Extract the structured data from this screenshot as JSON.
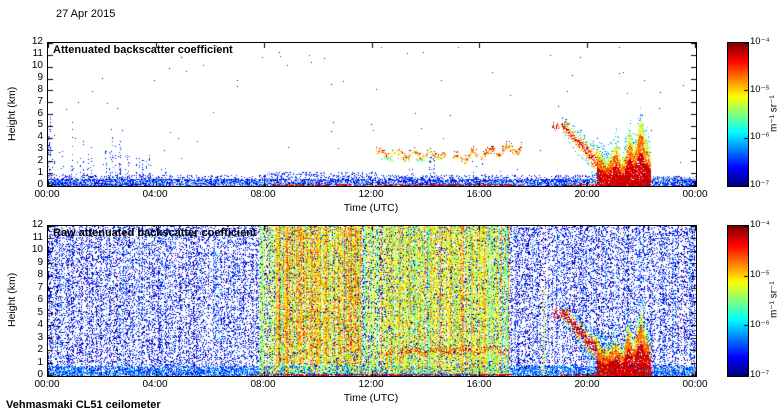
{
  "page": {
    "date_label": "27 Apr 2015",
    "footer_label": "Vehmasmaki CL51 ceilometer"
  },
  "colorbar": {
    "unit": "m⁻¹ sr⁻¹",
    "tick_labels": [
      "10⁻⁴",
      "10⁻⁵",
      "10⁻⁶",
      "10⁻⁷"
    ],
    "log10_range": [
      -4,
      -7
    ],
    "colormap": "jet"
  },
  "chart_data": [
    {
      "type": "heatmap",
      "title": "Attenuated backscatter coefficient",
      "xlabel": "Time (UTC)",
      "ylabel": "Height (km)",
      "x_tick_labels": [
        "00:00",
        "04:00",
        "08:00",
        "12:00",
        "16:00",
        "20:00",
        "00:00"
      ],
      "y_tick_labels": [
        "0",
        "1",
        "2",
        "3",
        "4",
        "5",
        "6",
        "7",
        "8",
        "9",
        "10",
        "11",
        "12"
      ],
      "x_range_hours": [
        0,
        24
      ],
      "y_range_km": [
        0,
        12
      ],
      "value_range_log10": [
        -7,
        -4
      ],
      "colormap": "jet",
      "seed": 11,
      "features": [
        {
          "kind": "fill_band",
          "t": [
            0,
            24
          ],
          "h": [
            0,
            0.28
          ],
          "color": "#e3e3e3"
        },
        {
          "kind": "fill_band",
          "t": [
            22.3,
            24
          ],
          "h": [
            0,
            0.7
          ],
          "color": "#e3e3e3"
        },
        {
          "kind": "speckle",
          "t": [
            0,
            24
          ],
          "h": [
            0,
            0.55
          ],
          "density": 0.55,
          "v": [
            -6.8,
            -6.1
          ]
        },
        {
          "kind": "speckle",
          "t": [
            0,
            8
          ],
          "h": [
            0.5,
            0.85
          ],
          "density": 0.22,
          "v": [
            -6.9,
            -6.3
          ]
        },
        {
          "kind": "speckle",
          "t": [
            8,
            12.2
          ],
          "h": [
            0.5,
            1.1
          ],
          "density": 0.28,
          "v": [
            -6.9,
            -6.3
          ]
        },
        {
          "kind": "speckle",
          "t": [
            12.2,
            22.3
          ],
          "h": [
            0.4,
            0.9
          ],
          "density": 0.26,
          "v": [
            -6.9,
            -6.3
          ]
        },
        {
          "kind": "speckle",
          "t": [
            0,
            24
          ],
          "h": [
            0,
            12
          ],
          "density": 0.0012,
          "v": [
            -7,
            -6.4
          ]
        },
        {
          "kind": "spikes",
          "t": [
            0,
            4.6
          ],
          "hBase": 0.8,
          "hMax": [
            5.8,
            1.4
          ],
          "prob": 0.32,
          "density": 0.3,
          "v": [
            -7,
            -6.2
          ]
        },
        {
          "kind": "spikes",
          "t": [
            13.1,
            14.5
          ],
          "hBase": 0.8,
          "hMax": [
            2.3,
            2.3
          ],
          "prob": 0.4,
          "density": 0.22,
          "v": [
            -6.9,
            -6.3
          ]
        },
        {
          "kind": "spikes",
          "t": [
            15.6,
            16.5
          ],
          "hBase": 0.7,
          "hMax": [
            1.9,
            1.9
          ],
          "prob": 0.35,
          "density": 0.2,
          "v": [
            -6.9,
            -6.3
          ]
        },
        {
          "kind": "layer",
          "t": [
            12.15,
            14.75
          ],
          "hc": [
            2.7,
            2.55
          ],
          "hAmp": 0.22,
          "thick": 0.35,
          "density": 0.5,
          "v": [
            -5.4,
            -4.3
          ],
          "darkTop": true
        },
        {
          "kind": "layer",
          "t": [
            12.35,
            14.5
          ],
          "hc": [
            2.25,
            2.15
          ],
          "hAmp": 0.12,
          "thick": 0.18,
          "density": 0.22,
          "v": [
            -5.9,
            -5.1
          ],
          "darkTop": false
        },
        {
          "kind": "layer",
          "t": [
            14.95,
            17.55
          ],
          "hc": [
            2.25,
            3.2
          ],
          "hAmp": 0.3,
          "thick": 0.4,
          "density": 0.5,
          "v": [
            -5.4,
            -4.25
          ],
          "darkTop": true
        },
        {
          "kind": "layer",
          "t": [
            18.65,
            19.35
          ],
          "hc": [
            4.9,
            5.15
          ],
          "hAmp": 0.15,
          "thick": 0.3,
          "density": 0.5,
          "v": [
            -4.7,
            -4.1
          ],
          "darkTop": true
        },
        {
          "kind": "diag",
          "t": [
            19.05,
            21.1
          ],
          "hs": 5.1,
          "he": 0.15,
          "width": 0.7,
          "density": 0.6
        },
        {
          "kind": "blob",
          "t": [
            20.35,
            22.35
          ],
          "topBase": 2.3,
          "jag": 0.8,
          "density": 0.9,
          "spikes": [
            {
              "t": 21.05,
              "h": 3.6,
              "w": 0.25
            },
            {
              "t": 21.55,
              "h": 4.6,
              "w": 0.3
            },
            {
              "t": 21.95,
              "h": 5.6,
              "w": 0.35
            },
            {
              "t": 22.18,
              "h": 4.0,
              "w": 0.2
            }
          ]
        },
        {
          "kind": "speckle",
          "t": [
            8.2,
            17.6
          ],
          "h": [
            0,
            0.12
          ],
          "density": 0.5,
          "v": [
            -4.5,
            -4.05
          ]
        },
        {
          "kind": "speckle",
          "t": [
            19.2,
            22.3
          ],
          "h": [
            0,
            0.12
          ],
          "density": 0.6,
          "v": [
            -4.5,
            -4.05
          ]
        },
        {
          "kind": "speckle",
          "t": [
            22.4,
            24
          ],
          "h": [
            0,
            0.8
          ],
          "density": 0.3,
          "v": [
            -6.8,
            -6.2
          ]
        }
      ]
    },
    {
      "type": "heatmap",
      "title": "Raw attenuated backscatter coefficient",
      "xlabel": "Time (UTC)",
      "ylabel": "Height (km)",
      "x_tick_labels": [
        "00:00",
        "04:00",
        "08:00",
        "12:00",
        "16:00",
        "20:00",
        "00:00"
      ],
      "y_tick_labels": [
        "0",
        "1",
        "2",
        "3",
        "4",
        "5",
        "6",
        "7",
        "8",
        "9",
        "10",
        "11",
        "12"
      ],
      "x_range_hours": [
        0,
        24
      ],
      "y_range_km": [
        0,
        12
      ],
      "value_range_log10": [
        -7,
        -4
      ],
      "colormap": "jet",
      "seed": 42,
      "features": [
        {
          "kind": "fill_band",
          "t": [
            0,
            24
          ],
          "h": [
            0,
            0.22
          ],
          "color": "#e3e3e3"
        },
        {
          "kind": "fill_band",
          "t": [
            22.3,
            24
          ],
          "h": [
            0,
            0.6
          ],
          "color": "#e3e3e3"
        },
        {
          "kind": "columns",
          "t": [
            0,
            24
          ],
          "h": [
            0,
            12
          ],
          "density": 0.3,
          "v": [
            -6.9,
            -6.35
          ],
          "colVar": 0.5,
          "vVar": 0.25
        },
        {
          "kind": "speckle",
          "t": [
            0,
            24
          ],
          "h": [
            0.05,
            0.8
          ],
          "density": 0.5,
          "v": [
            -6.6,
            -6.0
          ]
        },
        {
          "kind": "columns",
          "t": [
            7.8,
            17.1
          ],
          "h": [
            0.22,
            12
          ],
          "density": 0.55,
          "v": [
            -5.5,
            -5.05
          ],
          "colVar": 0.45,
          "vVar": 0.45
        },
        {
          "kind": "columns",
          "t": [
            8.4,
            11.6
          ],
          "h": [
            1,
            12
          ],
          "density": 0.4,
          "v": [
            -5.05,
            -4.6
          ],
          "colVar": 0.6,
          "vVar": 0.35
        },
        {
          "kind": "columns",
          "t": [
            12.4,
            16.2
          ],
          "h": [
            0.5,
            12
          ],
          "density": 0.28,
          "v": [
            -5.2,
            -4.8
          ],
          "colVar": 0.6,
          "vVar": 0.3
        },
        {
          "kind": "layer",
          "t": [
            12.2,
            12.85
          ],
          "hc": [
            1.7,
            1.8
          ],
          "hAmp": 0.12,
          "thick": 0.25,
          "density": 0.35,
          "v": [
            -4.9,
            -4.3
          ],
          "darkTop": true
        },
        {
          "kind": "layer",
          "t": [
            12.95,
            17.0
          ],
          "hc": [
            1.9,
            2.1
          ],
          "hAmp": 0.2,
          "thick": 0.3,
          "density": 0.4,
          "v": [
            -4.9,
            -4.2
          ],
          "darkTop": true
        },
        {
          "kind": "vline",
          "t": 18.32,
          "h": [
            0,
            7.2
          ],
          "widthPx": 2,
          "density": 0.45,
          "v": [
            -5.7,
            -5.1
          ]
        },
        {
          "kind": "layer",
          "t": [
            18.7,
            19.35
          ],
          "hc": [
            4.85,
            5.1
          ],
          "hAmp": 0.18,
          "thick": 0.35,
          "density": 0.55,
          "v": [
            -4.7,
            -4.1
          ],
          "darkTop": true
        },
        {
          "kind": "diag",
          "t": [
            19.05,
            21.1
          ],
          "hs": 5.1,
          "he": 0.15,
          "width": 0.8,
          "density": 0.65
        },
        {
          "kind": "blob",
          "t": [
            20.35,
            22.35
          ],
          "topBase": 2.2,
          "jag": 0.8,
          "density": 0.9,
          "spikes": [
            {
              "t": 21.5,
              "h": 4.2,
              "w": 0.3
            },
            {
              "t": 21.95,
              "h": 5.1,
              "w": 0.35
            },
            {
              "t": 22.2,
              "h": 3.5,
              "w": 0.2
            }
          ]
        },
        {
          "kind": "speckle",
          "t": [
            7.6,
            17.2
          ],
          "h": [
            0,
            0.12
          ],
          "density": 0.55,
          "v": [
            -4.5,
            -4.05
          ]
        },
        {
          "kind": "speckle",
          "t": [
            19.0,
            22.3
          ],
          "h": [
            0,
            0.12
          ],
          "density": 0.6,
          "v": [
            -4.5,
            -4.05
          ]
        }
      ]
    }
  ]
}
